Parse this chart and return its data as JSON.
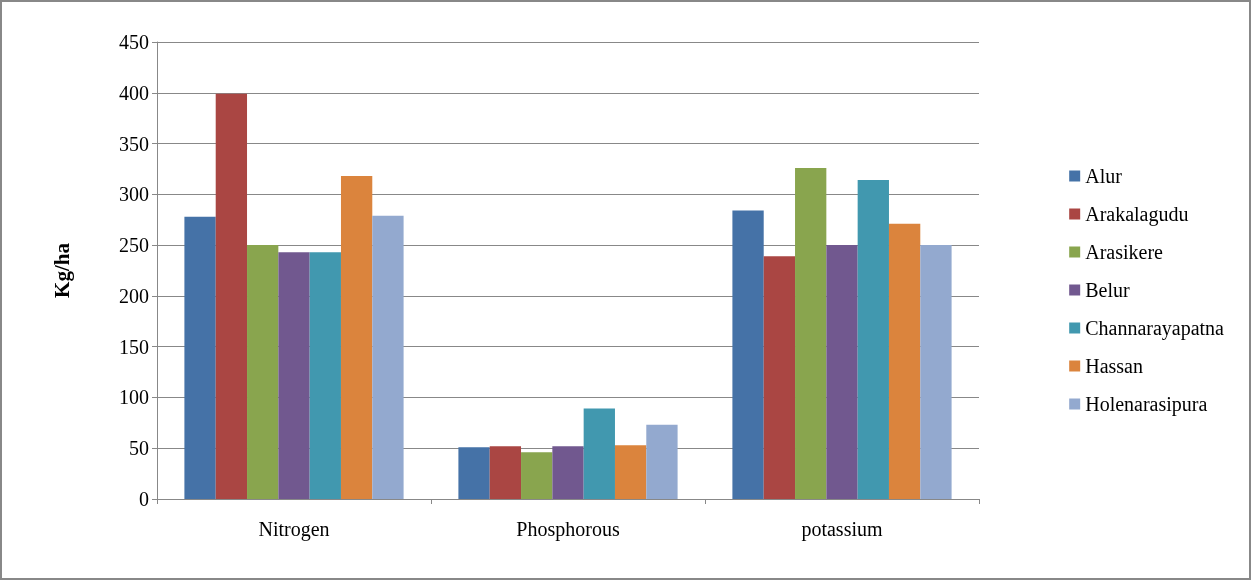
{
  "chart_data": {
    "type": "bar",
    "ylabel": "Kg/ha",
    "categories": [
      "Nitrogen",
      "Phosphorous",
      "potassium"
    ],
    "series": [
      {
        "name": "Alur",
        "color": "#4572a7",
        "values": [
          278,
          51,
          284
        ]
      },
      {
        "name": "Arakalagudu",
        "color": "#aa4643",
        "values": [
          399,
          52,
          239
        ]
      },
      {
        "name": "Arasikere",
        "color": "#89a54e",
        "values": [
          250,
          46,
          326
        ]
      },
      {
        "name": "Belur",
        "color": "#71588f",
        "values": [
          243,
          52,
          250
        ]
      },
      {
        "name": "Channarayapatna",
        "color": "#4198af",
        "values": [
          243,
          89,
          314
        ]
      },
      {
        "name": "Hassan",
        "color": "#db843d",
        "values": [
          318,
          53,
          271
        ]
      },
      {
        "name": "Holenarasipura",
        "color": "#93a9cf",
        "values": [
          279,
          73,
          250
        ]
      }
    ],
    "ylim": [
      0,
      450
    ],
    "yticks": [
      0,
      50,
      100,
      150,
      200,
      250,
      300,
      350,
      400,
      450
    ],
    "grid": "y",
    "legend": "right"
  }
}
